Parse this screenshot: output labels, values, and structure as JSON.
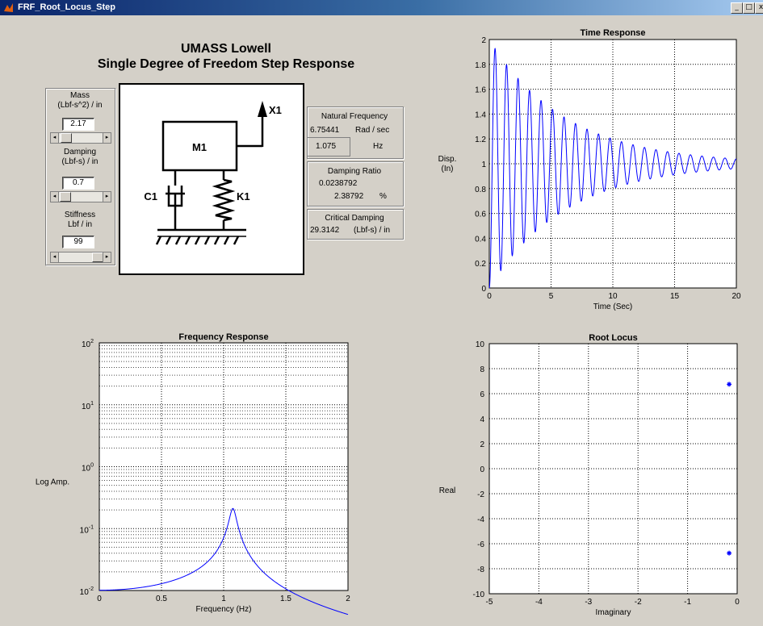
{
  "window": {
    "title": "FRF_Root_Locus_Step"
  },
  "header": {
    "line1": "UMASS Lowell",
    "line2": "Single Degree of Freedom Step Response"
  },
  "controls": {
    "mass": {
      "label1": "Mass",
      "label2": "(Lbf-s^2) / in",
      "value": "2.17"
    },
    "damping": {
      "label1": "Damping",
      "label2": "(Lbf-s) / in",
      "value": "0.7"
    },
    "stiffness": {
      "label1": "Stiffness",
      "label2": "Lbf / in",
      "value": "99"
    }
  },
  "diagram": {
    "mass": "M1",
    "damper": "C1",
    "spring": "K1",
    "output": "X1"
  },
  "results": {
    "natural_frequency": {
      "title": "Natural Frequency",
      "rad_value": "6.75441",
      "rad_unit": "Rad / sec",
      "hz_value": "1.075",
      "hz_unit": "Hz"
    },
    "damping_ratio": {
      "title": "Damping Ratio",
      "value": "0.0238792",
      "percent_value": "2.38792",
      "percent_unit": "%"
    },
    "critical_damping": {
      "title": "Critical Damping",
      "value": "29.3142",
      "unit": "(Lbf-s) / in"
    }
  },
  "chart_data": [
    {
      "type": "line",
      "title": "Time Response",
      "xlabel": "Time (Sec)",
      "ylabel": "Disp. (In)",
      "xlim": [
        0,
        20
      ],
      "ylim": [
        0,
        2
      ],
      "xticks": [
        0,
        5,
        10,
        15,
        20
      ],
      "yticks": [
        0,
        0.2,
        0.4,
        0.6,
        0.8,
        1,
        1.2,
        1.4,
        1.6,
        1.8,
        2
      ],
      "grid": true,
      "model": {
        "wn": 6.75441,
        "zeta": 0.0238792,
        "t_end": 20
      },
      "color": "#0000ff"
    },
    {
      "type": "line",
      "title": "Frequency Response",
      "xlabel": "Frequency (Hz)",
      "ylabel": "Log Amp.",
      "xlim": [
        0,
        2
      ],
      "ylim": [
        0.01,
        100
      ],
      "yscale": "log",
      "xticks": [
        0,
        0.5,
        1,
        1.5,
        2
      ],
      "ytick_labels": [
        "10^-2",
        "10^-1",
        "10^0",
        "10^1",
        "10^2"
      ],
      "grid": true,
      "model": {
        "fn": 1.075,
        "zeta": 0.0238792,
        "k": 99
      },
      "color": "#0000ff"
    },
    {
      "type": "scatter",
      "title": "Root Locus",
      "xlabel": "Imaginary",
      "ylabel": "Real",
      "xlim": [
        -5,
        0
      ],
      "ylim": [
        -10,
        10
      ],
      "xticks": [
        -5,
        -4,
        -3,
        -2,
        -1,
        0
      ],
      "yticks": [
        -10,
        -8,
        -6,
        -4,
        -2,
        0,
        2,
        4,
        6,
        8,
        10
      ],
      "grid": true,
      "points": [
        [
          -0.1613,
          6.7525
        ],
        [
          -0.1613,
          -6.7525
        ]
      ],
      "color": "#0000ff"
    }
  ],
  "theme": {
    "plot_line": "#0000ff",
    "face": "#d4d0c8",
    "titlebar": "#0a246a"
  }
}
